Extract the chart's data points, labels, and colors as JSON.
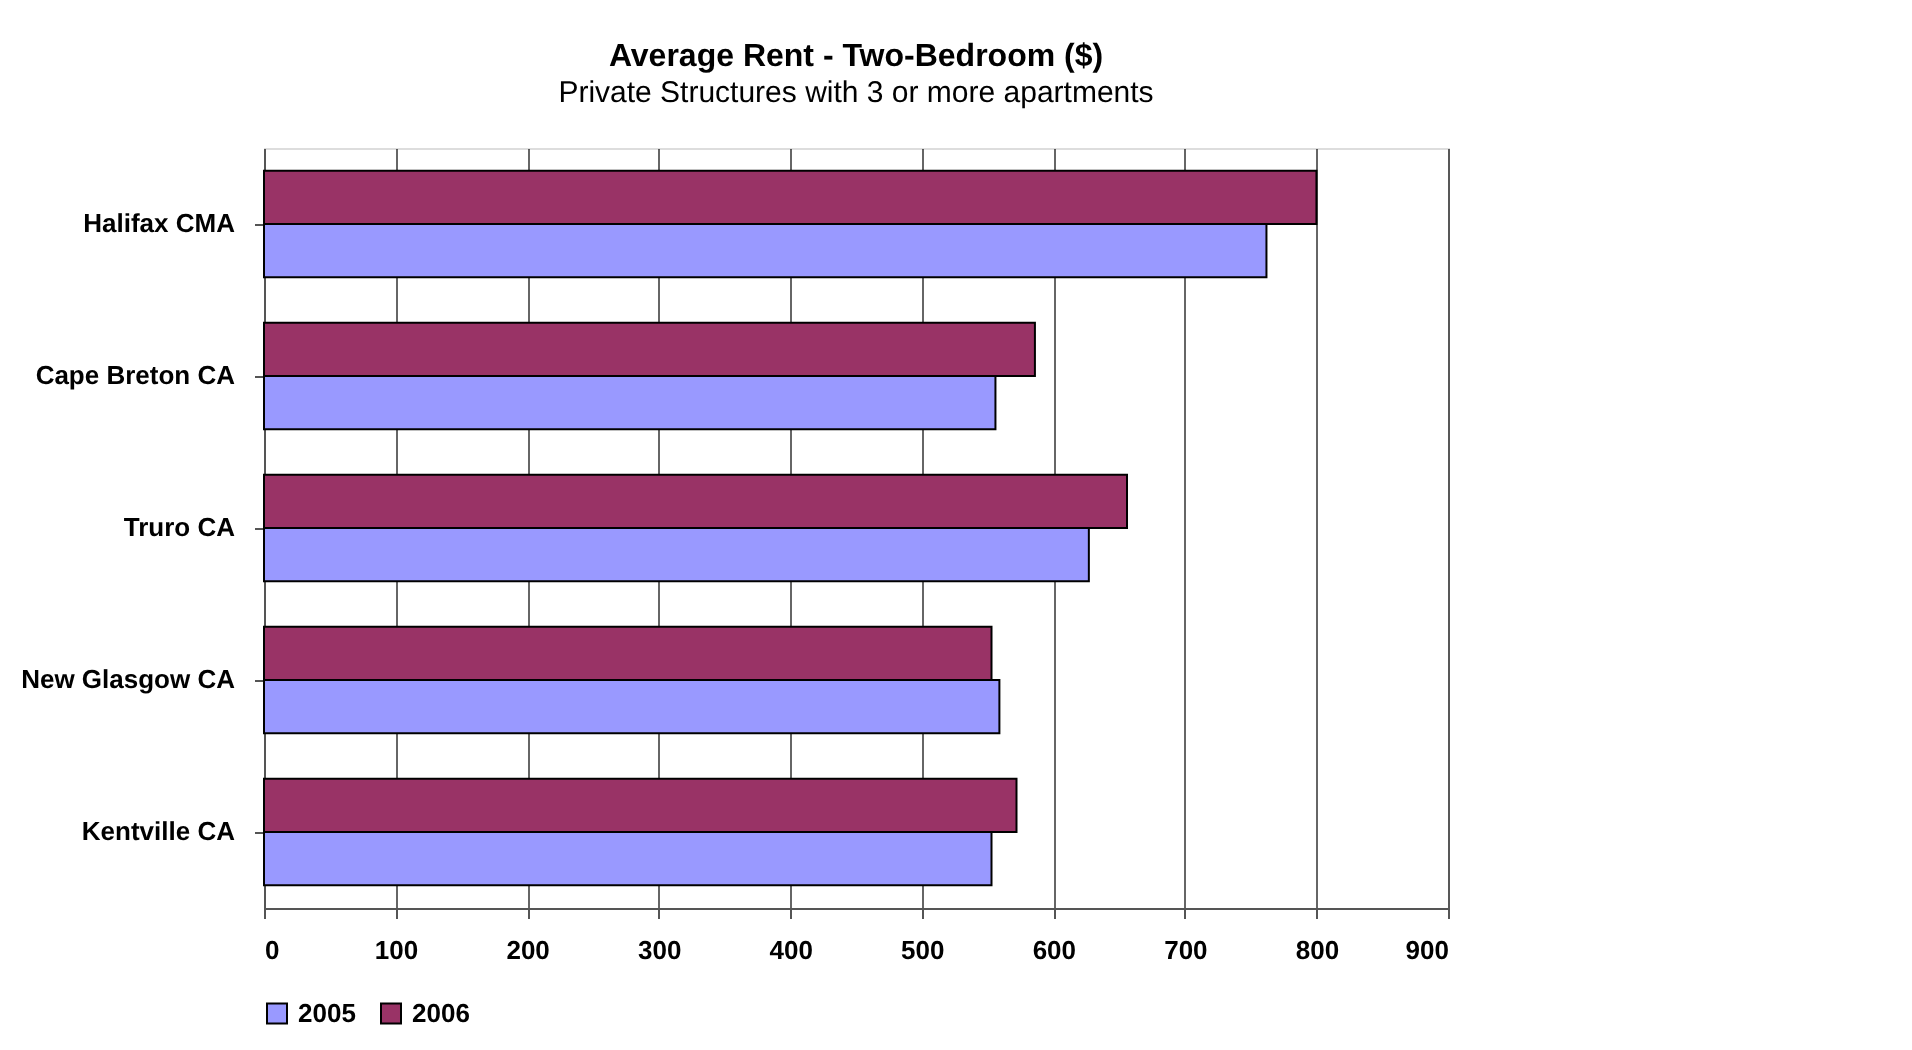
{
  "chart_data": {
    "type": "bar",
    "orientation": "horizontal",
    "title": "Average Rent - Two-Bedroom ($)",
    "subtitle": "Private Structures with 3 or more apartments",
    "categories": [
      "Halifax CMA",
      "Cape Breton CA",
      "Truro CA",
      "New Glasgow CA",
      "Kentville CA"
    ],
    "series": [
      {
        "name": "2005",
        "color": "#9999ff",
        "values": [
          762,
          556,
          627,
          559,
          553
        ]
      },
      {
        "name": "2006",
        "color": "#993366",
        "values": [
          800,
          586,
          656,
          553,
          572
        ]
      }
    ],
    "xlim": [
      0,
      900
    ],
    "xticks": [
      0,
      100,
      200,
      300,
      400,
      500,
      600,
      700,
      800,
      900
    ],
    "grid": "x",
    "legend": "bottom"
  }
}
